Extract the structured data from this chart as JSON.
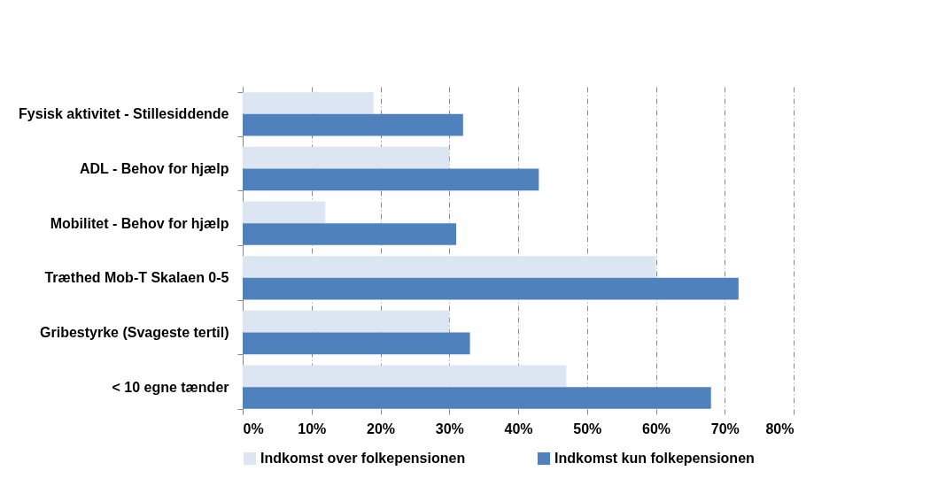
{
  "chart_data": {
    "type": "bar",
    "orientation": "horizontal",
    "categories": [
      "Fysisk aktivitet - Stillesiddende",
      "ADL - Behov for hjælp",
      "Mobilitet - Behov for hjælp",
      "Træthed Mob-T Skalaen 0-5",
      "Gribestyrke (Svageste tertil)",
      "< 10 egne tænder"
    ],
    "series": [
      {
        "name": "Indkomst over folkepensionen",
        "color": "#dce6f2",
        "values": [
          19,
          30,
          12,
          60,
          30,
          47
        ]
      },
      {
        "name": "Indkomst kun folkepensionen",
        "color": "#4f81bd",
        "values": [
          32,
          43,
          31,
          72,
          33,
          68
        ]
      }
    ],
    "xlim": [
      0,
      80
    ],
    "xticks": [
      {
        "value": 0,
        "label": "0%"
      },
      {
        "value": 10,
        "label": "10%"
      },
      {
        "value": 20,
        "label": "20%"
      },
      {
        "value": 30,
        "label": "30%"
      },
      {
        "value": 40,
        "label": "40%"
      },
      {
        "value": 50,
        "label": "50%"
      },
      {
        "value": 60,
        "label": "60%"
      },
      {
        "value": 70,
        "label": "70%"
      },
      {
        "value": 80,
        "label": "80%"
      }
    ],
    "grid": "x",
    "legend": "bottom"
  }
}
